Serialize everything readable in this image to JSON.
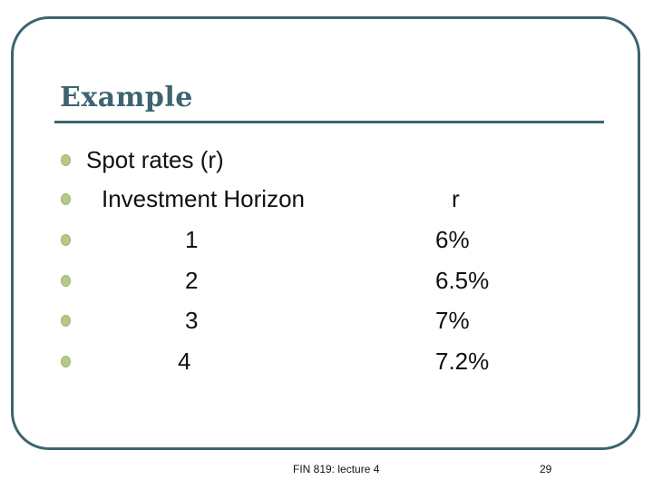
{
  "slide": {
    "title": "Example",
    "bullets": [
      {
        "label": "Spot rates (r)",
        "value": ""
      },
      {
        "label": "Investment Horizon",
        "value": "r"
      },
      {
        "label": "1",
        "value": "6%"
      },
      {
        "label": "2",
        "value": "6.5%"
      },
      {
        "label": "3",
        "value": "7%"
      },
      {
        "label": "4",
        "value": "7.2%"
      }
    ],
    "footer_text": "FIN 819: lecture 4",
    "page_number": "29"
  },
  "colors": {
    "accent": "#3d6470",
    "bullet": "#b3c98a"
  }
}
